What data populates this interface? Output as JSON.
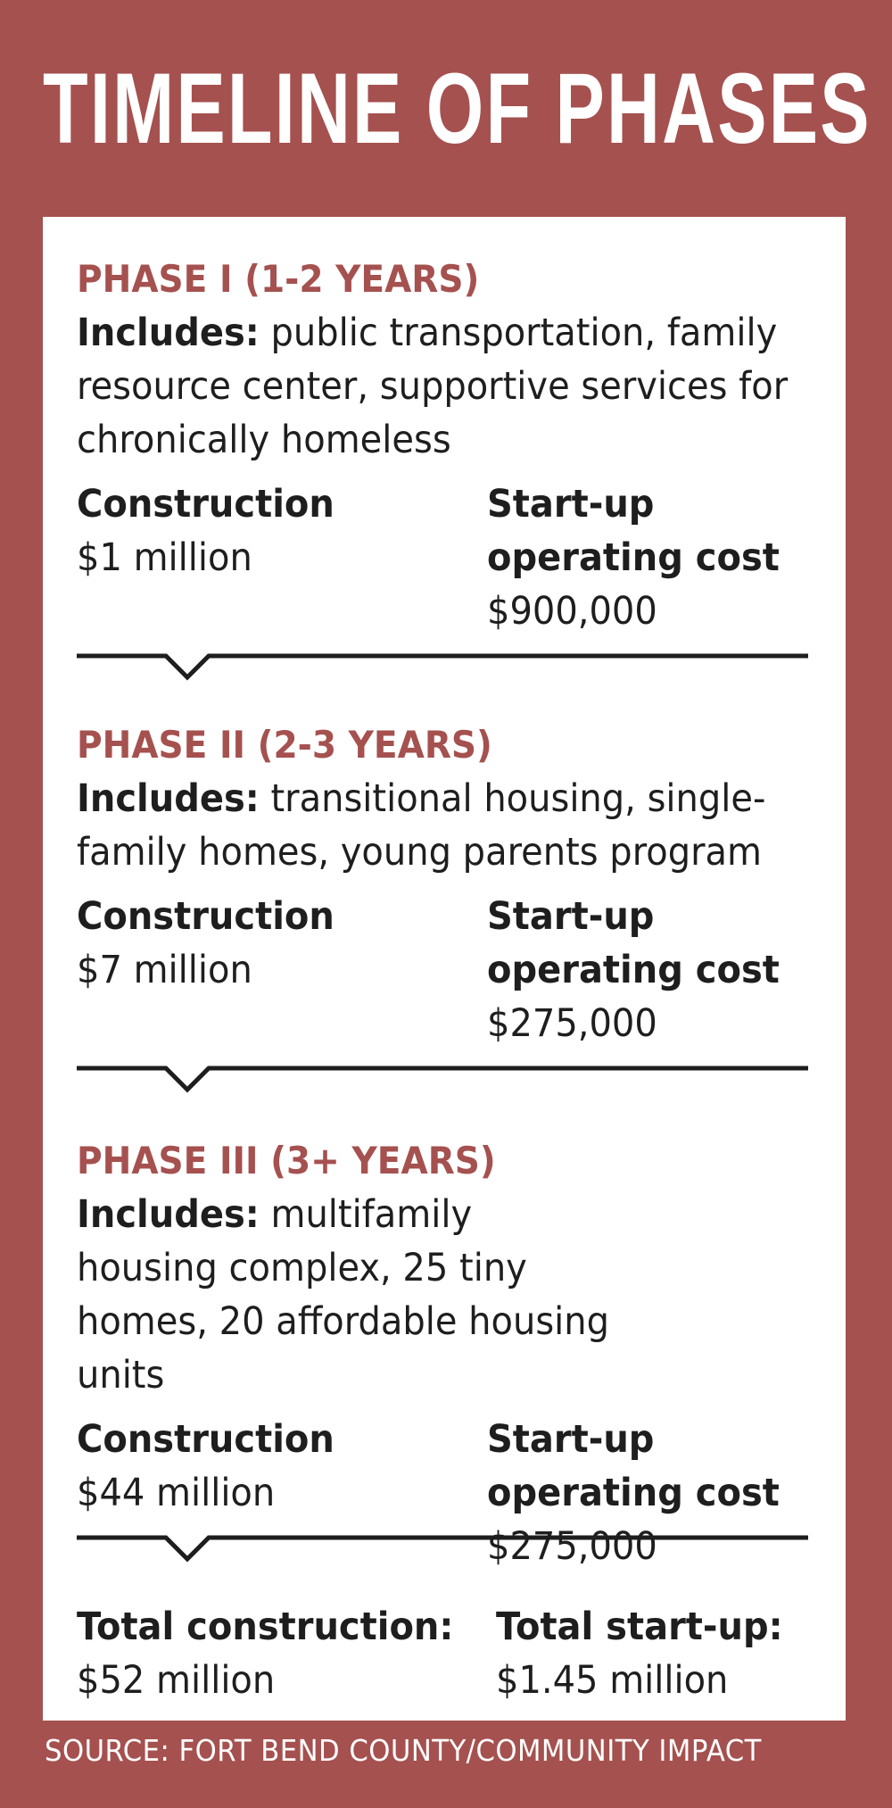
{
  "title": "TIMELINE OF PHASES",
  "phases": [
    {
      "title": "PHASE I (1-2 YEARS)",
      "includes_label": "Includes:",
      "includes_text": " public transportation, family resource center, supportive services for chronically homeless",
      "construction_label": "Construction",
      "construction_value": "$1 million",
      "startup_label_1": "Start-up",
      "startup_label_2": "operating cost",
      "startup_value": "$900,000"
    },
    {
      "title": "PHASE II (2-3 YEARS)",
      "includes_label": "Includes:",
      "includes_text": " transitional housing, single-family homes, young parents program",
      "construction_label": "Construction",
      "construction_value": "$7 million",
      "startup_label_1": "Start-up",
      "startup_label_2": "operating cost",
      "startup_value": "$275,000"
    },
    {
      "title": "PHASE III (3+ YEARS)",
      "includes_label": "Includes:",
      "includes_text": " multifamily housing complex, 25 tiny homes, 20 affordable housing units",
      "construction_label": "Construction",
      "construction_value": "$44 million",
      "startup_label_1": "Start-up",
      "startup_label_2": "operating cost",
      "startup_value": "$275,000"
    }
  ],
  "totals": {
    "construction_label": "Total construction:",
    "construction_value": "$52 million",
    "startup_label": "Total start-up:",
    "startup_value": "$1.45 million"
  },
  "source": "SOURCE: FORT BEND COUNTY/COMMUNITY IMPACT",
  "colors": {
    "background": "#a5514f",
    "panel": "#ffffff",
    "phase_title": "#a5514f",
    "text": "#1e1e1e"
  }
}
